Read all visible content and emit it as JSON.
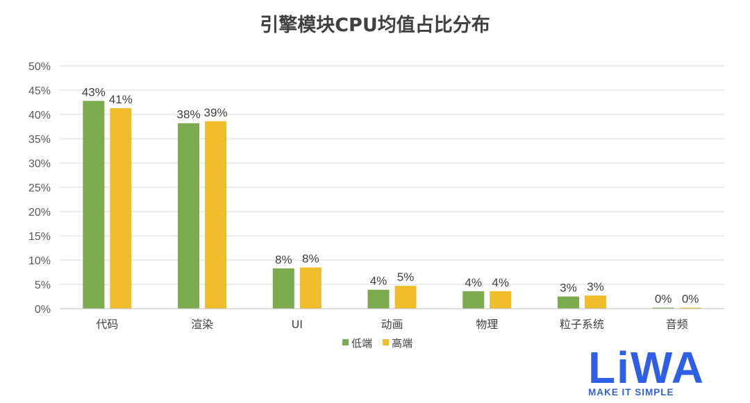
{
  "chart_data": {
    "type": "bar",
    "title": "引擎模块CPU均值占比分布",
    "categories": [
      "代码",
      "渲染",
      "UI",
      "动画",
      "物理",
      "粒子系统",
      "音频"
    ],
    "series": [
      {
        "name": "低端",
        "color": "#7caa4e",
        "values": [
          42.8,
          38.2,
          8.3,
          3.9,
          3.6,
          2.5,
          0.2
        ],
        "labels": [
          "43%",
          "38%",
          "8%",
          "4%",
          "4%",
          "3%",
          "0%"
        ]
      },
      {
        "name": "高端",
        "color": "#f0bd2d",
        "values": [
          41.3,
          38.6,
          8.5,
          4.7,
          3.6,
          2.7,
          0.2
        ],
        "labels": [
          "41%",
          "39%",
          "8%",
          "5%",
          "4%",
          "3%",
          "0%"
        ]
      }
    ],
    "ylim": [
      0,
      50
    ],
    "yticks": [
      "0%",
      "5%",
      "10%",
      "15%",
      "20%",
      "25%",
      "30%",
      "35%",
      "40%",
      "45%",
      "50%"
    ],
    "ytick_values": [
      0,
      5,
      10,
      15,
      20,
      25,
      30,
      35,
      40,
      45,
      50
    ],
    "grid": true,
    "legend_position": "bottom"
  },
  "logo": {
    "wordmark": "LiWA",
    "tagline": "MAKE IT SIMPLE",
    "color": "#2f5fe6"
  }
}
